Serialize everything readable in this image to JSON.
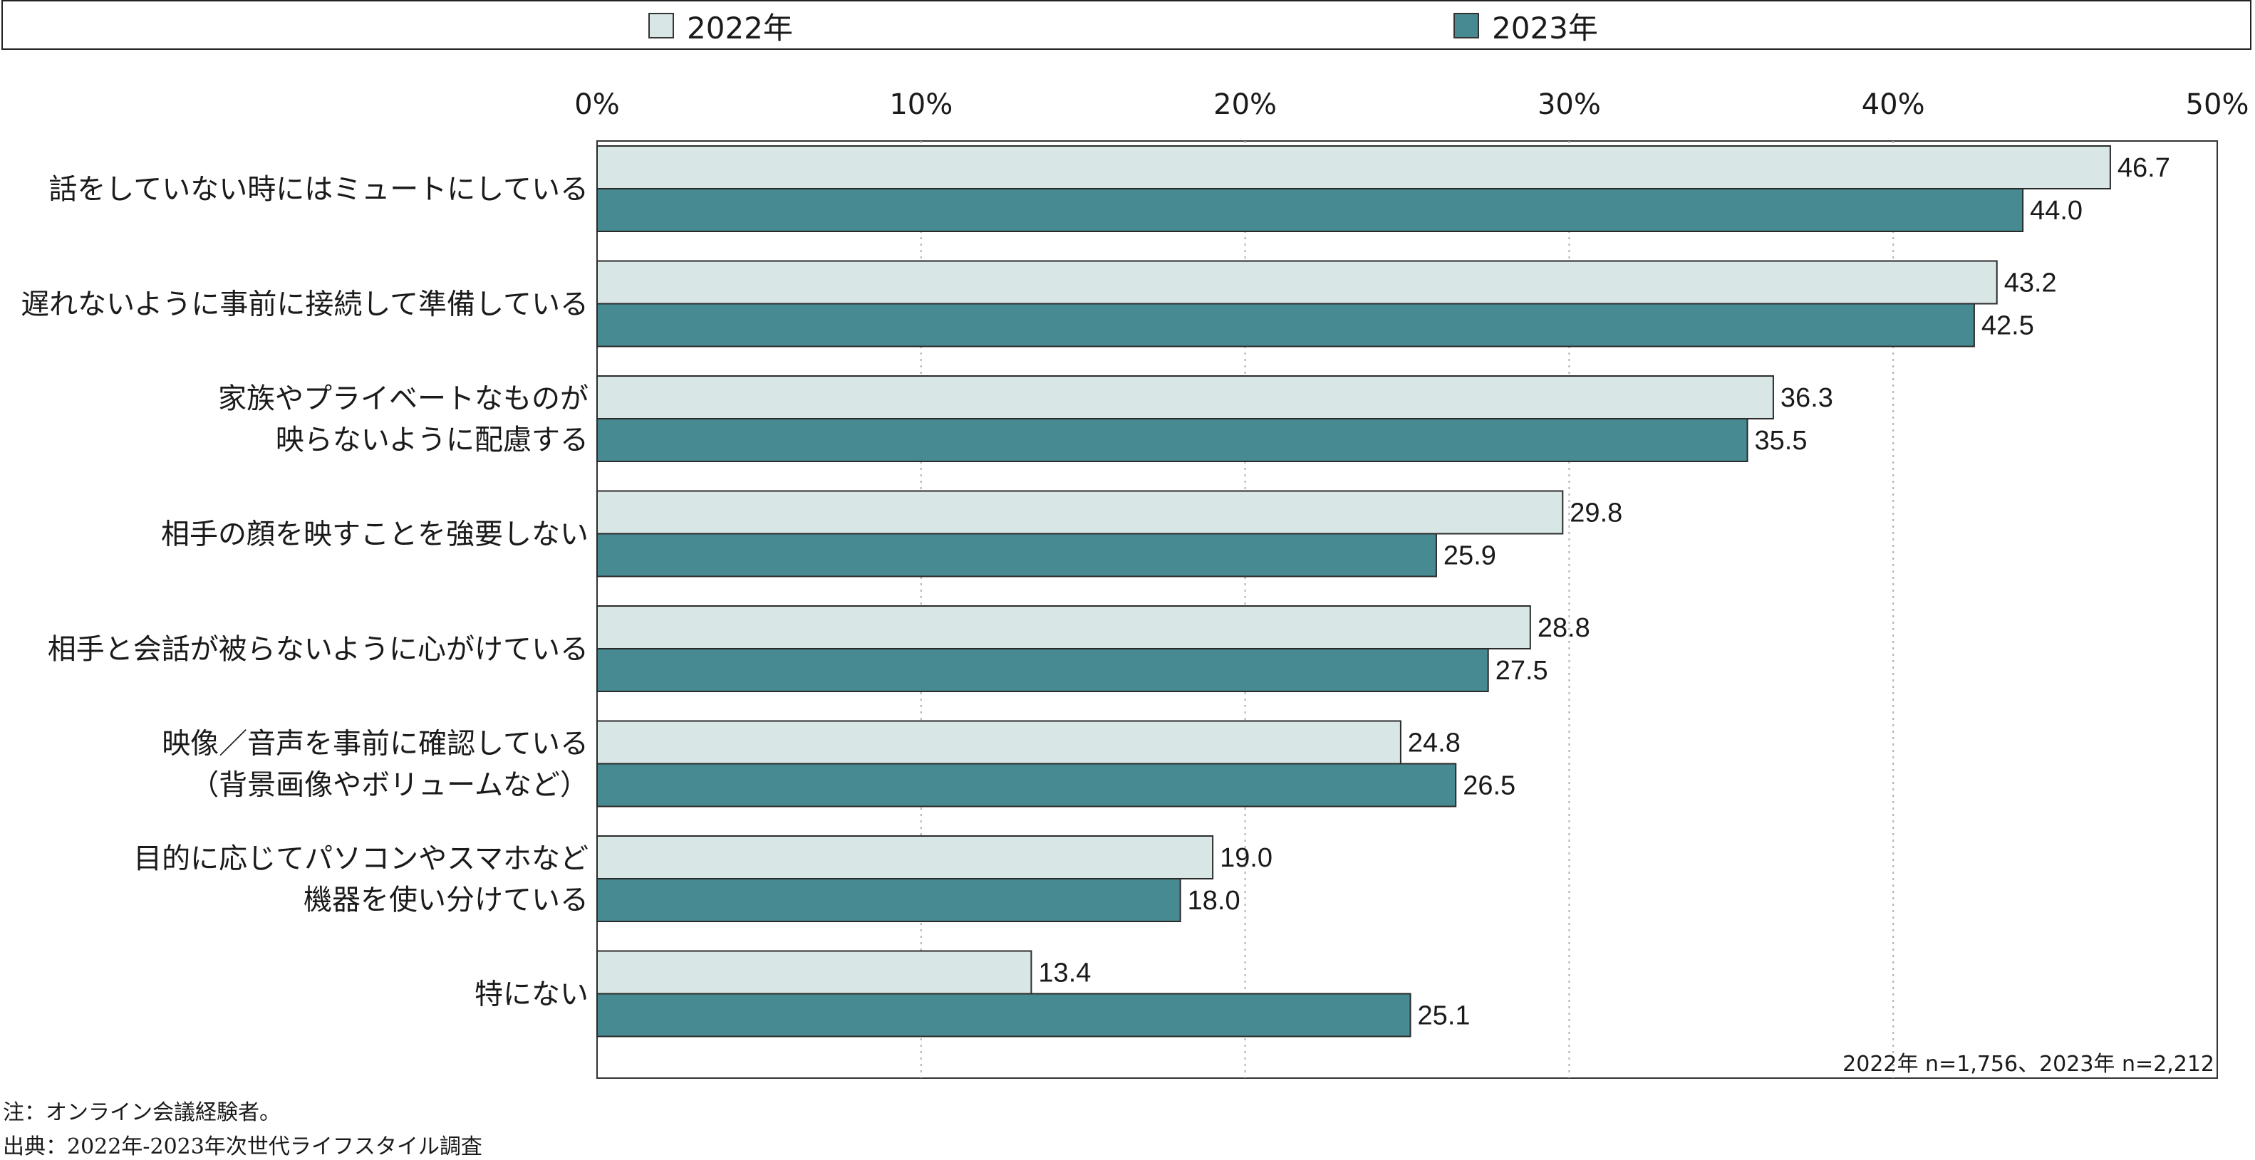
{
  "legend": [
    {
      "label": "2022年",
      "color": "#d9e6e6"
    },
    {
      "label": "2023年",
      "color": "#478a91"
    }
  ],
  "sample_note": "2022年 n=1,756、2023年 n=2,212",
  "footnote": "注：オンライン会議経験者。",
  "source": "出典：2022年-2023年次世代ライフスタイル調査",
  "chart_data": {
    "type": "bar",
    "orientation": "horizontal",
    "categories": [
      [
        "話をしていない時にはミュートにしている"
      ],
      [
        "遅れないように事前に接続して準備している"
      ],
      [
        "家族やプライベートなものが",
        "映らないように配慮する"
      ],
      [
        "相手の顔を映すことを強要しない"
      ],
      [
        "相手と会話が被らないように心がけている"
      ],
      [
        "映像／音声を事前に確認している",
        "（背景画像やボリュームなど）"
      ],
      [
        "目的に応じてパソコンやスマホなど",
        "機器を使い分けている"
      ],
      [
        "特にない"
      ]
    ],
    "series": [
      {
        "name": "2022年",
        "values": [
          46.7,
          43.2,
          36.3,
          29.8,
          28.8,
          24.8,
          19.0,
          13.4
        ],
        "color": "#d9e6e6"
      },
      {
        "name": "2023年",
        "values": [
          44.0,
          42.5,
          35.5,
          25.9,
          27.5,
          26.5,
          18.0,
          25.1
        ],
        "color": "#478a91"
      }
    ],
    "xlim": [
      0,
      50
    ],
    "xticks": [
      "0%",
      "10%",
      "20%",
      "30%",
      "40%",
      "50%"
    ],
    "tick_values": [
      0,
      10,
      20,
      30,
      40,
      50
    ],
    "grid": "vertical dotted",
    "legend_position": "top"
  }
}
